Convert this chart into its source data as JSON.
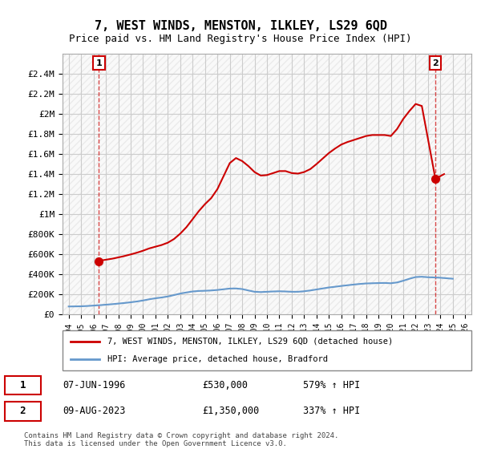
{
  "title": "7, WEST WINDS, MENSTON, ILKLEY, LS29 6QD",
  "subtitle": "Price paid vs. HM Land Registry's House Price Index (HPI)",
  "title_fontsize": 11,
  "subtitle_fontsize": 9,
  "ylim": [
    0,
    2600000
  ],
  "yticks": [
    0,
    200000,
    400000,
    600000,
    800000,
    1000000,
    1200000,
    1400000,
    1600000,
    1800000,
    2000000,
    2200000,
    2400000
  ],
  "ytick_labels": [
    "£0",
    "£200K",
    "£400K",
    "£600K",
    "£800K",
    "£1M",
    "£1.2M",
    "£1.4M",
    "£1.6M",
    "£1.8M",
    "£2M",
    "£2.2M",
    "£2.4M"
  ],
  "xlim_start": 1993.5,
  "xlim_end": 2026.5,
  "xtick_years": [
    1994,
    1995,
    1996,
    1997,
    1998,
    1999,
    2000,
    2001,
    2002,
    2003,
    2004,
    2005,
    2006,
    2007,
    2008,
    2009,
    2010,
    2011,
    2012,
    2013,
    2014,
    2015,
    2016,
    2017,
    2018,
    2019,
    2020,
    2021,
    2022,
    2023,
    2024,
    2025,
    2026
  ],
  "hpi_x": [
    1994,
    1994.5,
    1995,
    1995.5,
    1996,
    1996.5,
    1997,
    1997.5,
    1998,
    1998.5,
    1999,
    1999.5,
    2000,
    2000.5,
    2001,
    2001.5,
    2002,
    2002.5,
    2003,
    2003.5,
    2004,
    2004.5,
    2005,
    2005.5,
    2006,
    2006.5,
    2007,
    2007.5,
    2008,
    2008.5,
    2009,
    2009.5,
    2010,
    2010.5,
    2011,
    2011.5,
    2012,
    2012.5,
    2013,
    2013.5,
    2014,
    2014.5,
    2015,
    2015.5,
    2016,
    2016.5,
    2017,
    2017.5,
    2018,
    2018.5,
    2019,
    2019.5,
    2020,
    2020.5,
    2021,
    2021.5,
    2022,
    2022.5,
    2023,
    2023.5,
    2024,
    2024.5,
    2025
  ],
  "hpi_y": [
    78000,
    79000,
    80000,
    83000,
    87000,
    91000,
    96000,
    101000,
    107000,
    113000,
    120000,
    128000,
    138000,
    150000,
    160000,
    168000,
    178000,
    192000,
    207000,
    218000,
    228000,
    233000,
    235000,
    238000,
    243000,
    250000,
    257000,
    258000,
    252000,
    238000,
    225000,
    222000,
    225000,
    228000,
    230000,
    228000,
    225000,
    225000,
    230000,
    238000,
    248000,
    258000,
    268000,
    275000,
    283000,
    290000,
    297000,
    303000,
    308000,
    310000,
    312000,
    313000,
    310000,
    318000,
    335000,
    355000,
    372000,
    375000,
    370000,
    368000,
    365000,
    360000,
    355000
  ],
  "house_x": [
    1996.44,
    1996.5,
    1997,
    1997.5,
    1998,
    1998.5,
    1999,
    1999.5,
    2000,
    2000.5,
    2001,
    2001.5,
    2002,
    2002.5,
    2003,
    2003.5,
    2004,
    2004.5,
    2005,
    2005.5,
    2006,
    2006.5,
    2007,
    2007.5,
    2008,
    2008.5,
    2009,
    2009.5,
    2010,
    2010.5,
    2011,
    2011.5,
    2012,
    2012.5,
    2013,
    2013.5,
    2014,
    2014.5,
    2015,
    2015.5,
    2016,
    2016.5,
    2017,
    2017.5,
    2018,
    2018.5,
    2019,
    2019.5,
    2020,
    2020.5,
    2021,
    2021.5,
    2022,
    2022.5,
    2023.6,
    2024,
    2024.3
  ],
  "house_y": [
    530000,
    535000,
    545000,
    555000,
    568000,
    582000,
    598000,
    615000,
    635000,
    658000,
    675000,
    692000,
    715000,
    752000,
    805000,
    870000,
    950000,
    1030000,
    1100000,
    1160000,
    1250000,
    1380000,
    1510000,
    1560000,
    1530000,
    1480000,
    1420000,
    1385000,
    1390000,
    1410000,
    1430000,
    1430000,
    1410000,
    1405000,
    1420000,
    1450000,
    1500000,
    1555000,
    1610000,
    1655000,
    1695000,
    1720000,
    1740000,
    1760000,
    1780000,
    1790000,
    1790000,
    1790000,
    1780000,
    1850000,
    1950000,
    2030000,
    2100000,
    2080000,
    1350000,
    1380000,
    1400000
  ],
  "sale1_x": 1996.44,
  "sale1_y": 530000,
  "sale1_label": "1",
  "sale2_x": 2023.6,
  "sale2_y": 1350000,
  "sale2_label": "2",
  "vline1_x": 1996.44,
  "vline2_x": 2023.6,
  "line_color_house": "#cc0000",
  "line_color_hpi": "#6699cc",
  "bg_color": "#ffffff",
  "hatch_color": "#e8e8e8",
  "grid_color": "#cccccc",
  "legend_label_house": "7, WEST WINDS, MENSTON, ILKLEY, LS29 6QD (detached house)",
  "legend_label_hpi": "HPI: Average price, detached house, Bradford",
  "annotation1_date": "07-JUN-1996",
  "annotation1_price": "£530,000",
  "annotation1_hpi": "579% ↑ HPI",
  "annotation2_date": "09-AUG-2023",
  "annotation2_price": "£1,350,000",
  "annotation2_hpi": "337% ↑ HPI",
  "footer": "Contains HM Land Registry data © Crown copyright and database right 2024.\nThis data is licensed under the Open Government Licence v3.0."
}
